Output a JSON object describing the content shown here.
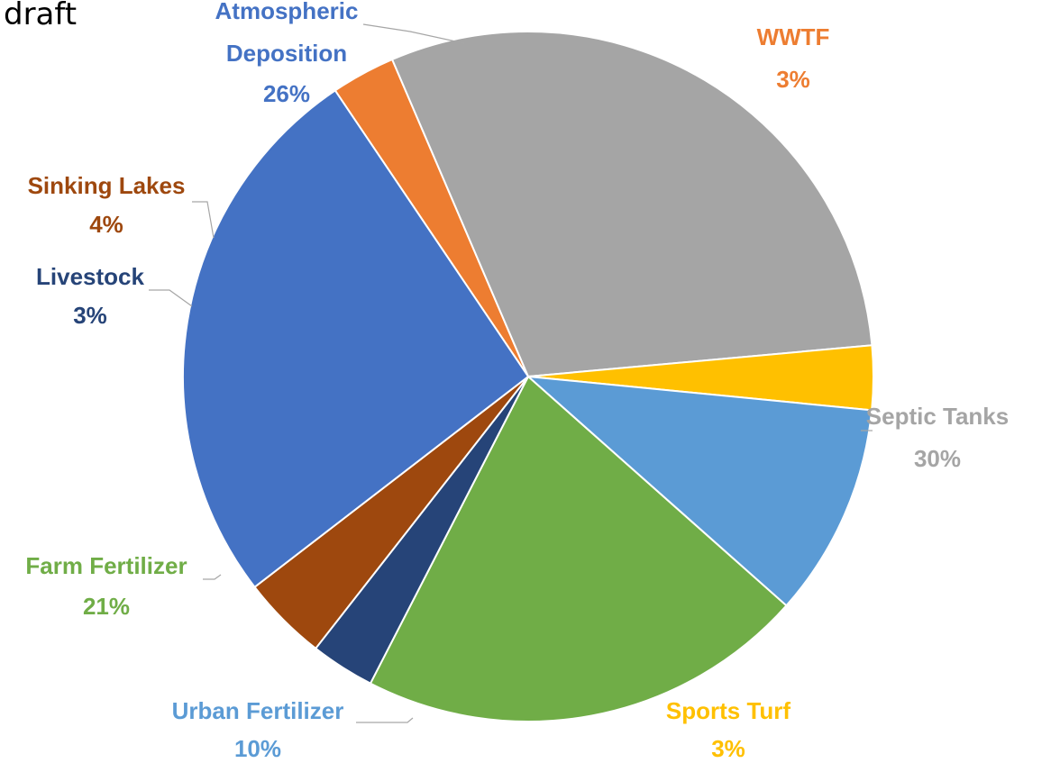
{
  "page": {
    "tag": "draft"
  },
  "chart_data": {
    "type": "pie",
    "title": "",
    "slices": [
      {
        "name": "WWTF",
        "value": 3,
        "value_label": "3%",
        "color": "#ed7d31"
      },
      {
        "name": "Septic Tanks",
        "value": 30,
        "value_label": "30%",
        "color": "#a5a5a5"
      },
      {
        "name": "Sports Turf",
        "value": 3,
        "value_label": "3%",
        "color": "#ffc000"
      },
      {
        "name": "Urban Fertilizer",
        "value": 10,
        "value_label": "10%",
        "color": "#5b9bd5"
      },
      {
        "name": "Farm Fertilizer",
        "value": 21,
        "value_label": "21%",
        "color": "#70ad47"
      },
      {
        "name": "Livestock",
        "value": 3,
        "value_label": "3%",
        "color": "#264478"
      },
      {
        "name": "Sinking Lakes",
        "value": 4,
        "value_label": "4%",
        "color": "#9e480e"
      },
      {
        "name": "Atmospheric Deposition",
        "value": 26,
        "value_label": "26%",
        "color": "#4472c4"
      }
    ]
  }
}
